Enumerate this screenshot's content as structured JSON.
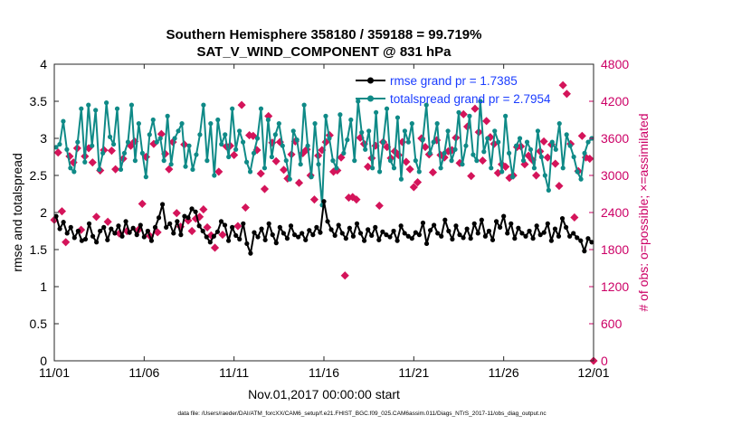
{
  "chart_data": {
    "type": "line",
    "title_line1": "Southern Hemisphere 358180 / 359188 = 99.719%",
    "title_line2": "SAT_V_WIND_COMPONENT @ 831 hPa",
    "xlabel": "Nov.01,2017 00:00:00 start",
    "ylabel_left": "rmse and totalspread",
    "ylabel_right": "# of obs: o=possible; ×=assimilated",
    "footer": "data file: /Users/raeder/DAI/ATM_forcXX/CAM6_setup/f.e21.FHIST_BGC.f09_025.CAM6assim.011/Diags_NTrS_2017-11/obs_diag_output.nc",
    "xlim": [
      0,
      30
    ],
    "x_ticks": [
      0,
      5,
      10,
      15,
      20,
      25,
      30
    ],
    "x_tick_labels": [
      "11/01",
      "11/06",
      "11/11",
      "11/16",
      "11/21",
      "11/26",
      "12/01"
    ],
    "ylim_left": [
      0,
      4
    ],
    "y_ticks_left": [
      "0",
      "0.5",
      "1",
      "1.5",
      "2",
      "2.5",
      "3",
      "3.5",
      "4"
    ],
    "ylim_right": [
      0,
      4800
    ],
    "y_ticks_right": [
      "0",
      "600",
      "1200",
      "1800",
      "2400",
      "3000",
      "3600",
      "4200",
      "4800"
    ],
    "colors": {
      "rmse": "#000000",
      "spread": "#0f8a87",
      "obs": "#d4145a",
      "right_axis": "#cc0066",
      "legend_text": "#1a3cff"
    },
    "series": [
      {
        "name": "rmse grand pr = 1.7385",
        "axis": "left",
        "values": [
          1.95,
          1.78,
          1.87,
          1.72,
          1.8,
          1.66,
          1.75,
          1.62,
          1.64,
          1.85,
          1.68,
          1.6,
          1.75,
          1.8,
          1.63,
          1.78,
          1.72,
          1.82,
          1.68,
          1.88,
          1.73,
          1.79,
          1.7,
          1.83,
          1.67,
          1.75,
          1.62,
          1.8,
          1.93,
          2.11,
          1.8,
          1.85,
          1.72,
          1.88,
          1.7,
          1.95,
          1.93,
          2.05,
          2.01,
          1.82,
          1.75,
          1.67,
          1.6,
          1.68,
          1.74,
          1.88,
          1.83,
          1.62,
          1.8,
          1.69,
          1.64,
          1.85,
          1.58,
          1.45,
          1.73,
          1.67,
          1.78,
          1.63,
          1.85,
          1.7,
          1.59,
          1.8,
          1.72,
          1.65,
          1.82,
          1.7,
          1.67,
          1.72,
          1.63,
          1.76,
          1.7,
          1.8,
          1.73,
          2.15,
          1.88,
          1.77,
          1.69,
          1.83,
          1.72,
          1.65,
          1.79,
          1.68,
          1.85,
          1.72,
          1.62,
          1.77,
          1.69,
          1.8,
          1.63,
          1.74,
          1.7,
          1.67,
          1.75,
          1.62,
          1.82,
          1.72,
          1.68,
          1.65,
          1.73,
          1.7,
          1.86,
          1.58,
          1.76,
          1.83,
          1.72,
          1.68,
          1.9,
          1.75,
          1.64,
          1.82,
          1.7,
          1.66,
          1.78,
          1.65,
          1.85,
          1.72,
          1.9,
          1.68,
          1.75,
          1.63,
          1.88,
          1.8,
          1.95,
          1.72,
          1.85,
          1.65,
          1.79,
          1.72,
          1.68,
          1.75,
          1.65,
          1.82,
          1.7,
          1.73,
          1.85,
          1.62,
          1.78,
          1.68,
          1.92,
          1.8,
          1.68,
          1.72,
          1.66,
          1.62,
          1.48,
          1.65,
          1.6
        ]
      },
      {
        "name": "totalspread grand pr = 2.7954",
        "axis": "left",
        "values": [
          2.88,
          2.92,
          3.23,
          2.85,
          2.6,
          2.55,
          2.95,
          3.4,
          2.68,
          3.45,
          2.9,
          3.38,
          2.58,
          2.8,
          3.48,
          3.02,
          2.92,
          3.4,
          2.58,
          2.8,
          2.95,
          3.45,
          2.7,
          3.2,
          2.8,
          2.48,
          3.05,
          3.25,
          2.95,
          3.0,
          2.7,
          3.3,
          2.65,
          3.0,
          3.1,
          3.2,
          2.62,
          2.9,
          2.58,
          2.78,
          3.05,
          3.45,
          2.7,
          3.2,
          2.5,
          3.25,
          2.92,
          3.05,
          2.75,
          3.4,
          2.85,
          3.1,
          2.95,
          2.68,
          2.55,
          2.8,
          3.0,
          3.4,
          2.6,
          3.25,
          2.75,
          3.05,
          3.2,
          2.9,
          2.7,
          2.45,
          3.1,
          2.98,
          2.65,
          3.45,
          2.9,
          2.48,
          3.2,
          2.65,
          2.1,
          3.3,
          3.0,
          2.7,
          2.6,
          3.32,
          2.8,
          2.98,
          3.25,
          2.7,
          3.5,
          3.08,
          2.85,
          3.1,
          2.6,
          3.35,
          2.55,
          2.95,
          3.4,
          2.7,
          2.6,
          3.28,
          2.45,
          3.1,
          2.95,
          3.2,
          2.7,
          2.55,
          2.98,
          3.45,
          2.8,
          2.95,
          3.2,
          2.6,
          2.8,
          3.1,
          2.7,
          2.85,
          3.35,
          2.65,
          2.9,
          3.3,
          2.78,
          2.7,
          3.5,
          2.82,
          3.0,
          2.6,
          3.1,
          2.95,
          2.55,
          3.3,
          2.8,
          2.48,
          2.9,
          3.0,
          2.7,
          2.95,
          2.85,
          2.6,
          3.1,
          2.75,
          2.5,
          2.3,
          2.95,
          2.85,
          3.2,
          2.6,
          3.05,
          2.9,
          2.75,
          2.55,
          2.45,
          2.8,
          2.95,
          3.0
        ]
      },
      {
        "name": "observations",
        "axis": "right",
        "marker": "diamond",
        "values": [
          2280,
          3370,
          2420,
          1920,
          3310,
          3210,
          3440,
          2120,
          3310,
          3440,
          3210,
          2330,
          3080,
          3410,
          2250,
          3400,
          3100,
          2060,
          3270,
          2100,
          3480,
          3550,
          2120,
          2540,
          3300,
          2020,
          3510,
          2080,
          3670,
          3350,
          3100,
          3540,
          2390,
          2170,
          3500,
          2270,
          2100,
          2300,
          2330,
          2450,
          2160,
          2030,
          1830,
          3060,
          2040,
          3470,
          3480,
          3330,
          2180,
          4140,
          2480,
          3650,
          3640,
          3410,
          3030,
          2780,
          3960,
          3530,
          3230,
          3540,
          3090,
          2950,
          3340,
          3550,
          2880,
          3360,
          3420,
          3000,
          2610,
          3320,
          3410,
          3540,
          3650,
          3060,
          3080,
          3290,
          1380,
          2640,
          2650,
          2610,
          3610,
          3510,
          3140,
          3280,
          3480,
          2510,
          3540,
          3460,
          3280,
          3390,
          3330,
          3540,
          3220,
          3100,
          2810,
          2890,
          3600,
          3460,
          3340,
          3050,
          3570,
          3330,
          3290,
          3390,
          3410,
          3610,
          3200,
          3990,
          3790,
          2990,
          4080,
          3700,
          3240,
          3880,
          3620,
          3510,
          3040,
          3180,
          3140,
          2960,
          3000,
          3460,
          3470,
          3180,
          3320,
          3250,
          3000,
          3390,
          3550,
          3290,
          3500,
          3190,
          2830,
          4460,
          4320,
          3510,
          2320,
          3070,
          3640,
          3290,
          3270,
          0
        ]
      }
    ]
  }
}
